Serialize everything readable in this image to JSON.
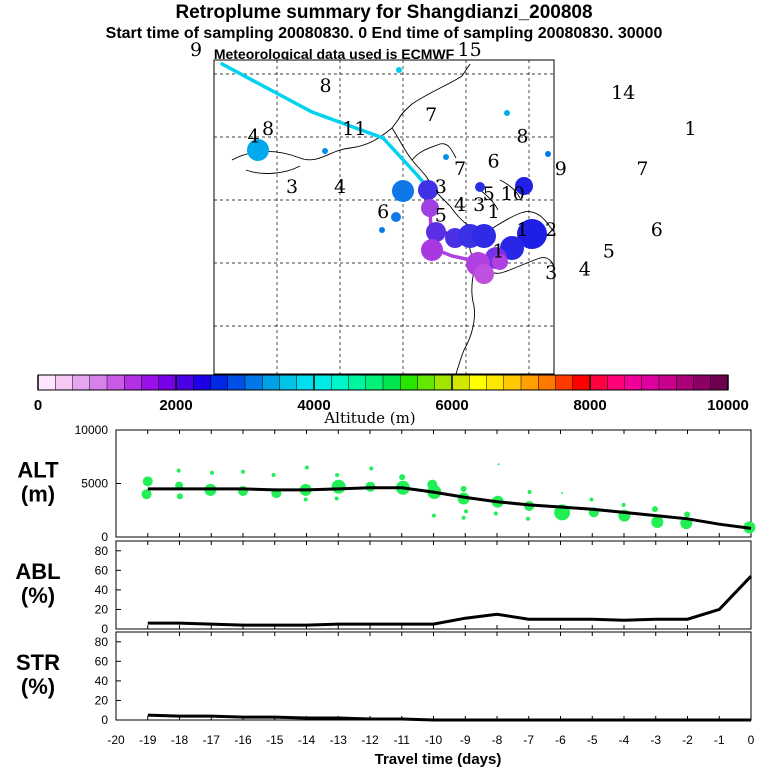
{
  "header": {
    "title": "Retroplume summary for Shangdianzi_200808",
    "subtitle": "Start time of sampling 20080830.    0     End time of sampling 20080830. 30000",
    "subtitle2": "Meteorological data used is ECMWF"
  },
  "chart_data": [
    {
      "type": "map",
      "name": "retroplume-map",
      "colorbar": {
        "label": "Altitude (m)",
        "ticks": [
          "0",
          "2000",
          "4000",
          "6000",
          "8000",
          "10000"
        ],
        "range": [
          0,
          10000
        ],
        "colors": [
          "#ffe6ff",
          "#f5c8f5",
          "#e6a5f0",
          "#d782eb",
          "#c85ae6",
          "#b430e6",
          "#9b10e6",
          "#7800e6",
          "#4b00e6",
          "#1e00e6",
          "#0028e6",
          "#0050e6",
          "#0078e6",
          "#00a0e6",
          "#00c3e6",
          "#00dcf0",
          "#00ebe6",
          "#00f5c8",
          "#00f5a0",
          "#00f078",
          "#00e650",
          "#28e600",
          "#64e600",
          "#a0e600",
          "#d2e600",
          "#ffff00",
          "#ffe600",
          "#ffc800",
          "#ffa000",
          "#ff7800",
          "#ff3c00",
          "#ff0000",
          "#ff0040",
          "#ff0078",
          "#f00096",
          "#dc00a0",
          "#c8008c",
          "#aa0078",
          "#8c0064",
          "#6e0050"
        ]
      },
      "labels": [
        {
          "text": "9",
          "lon": -3.0,
          "lat": 3.0
        },
        {
          "text": "15",
          "lon": 2.7,
          "lat": 3.0
        },
        {
          "text": "8",
          "lon": -0.3,
          "lat": 2.0
        },
        {
          "text": "14",
          "lon": 5.9,
          "lat": 1.8
        },
        {
          "text": "7",
          "lon": 1.9,
          "lat": 1.2
        },
        {
          "text": "8",
          "lon": -1.5,
          "lat": 0.8
        },
        {
          "text": "11",
          "lon": 0.3,
          "lat": 0.8
        },
        {
          "text": "8",
          "lon": 3.8,
          "lat": 0.6
        },
        {
          "text": "1",
          "lon": 7.3,
          "lat": 0.8
        },
        {
          "text": "4",
          "lon": -1.8,
          "lat": 0.6
        },
        {
          "text": "7",
          "lon": 2.5,
          "lat": -0.3
        },
        {
          "text": "6",
          "lon": 3.2,
          "lat": -0.1
        },
        {
          "text": "9",
          "lon": 4.6,
          "lat": -0.3
        },
        {
          "text": "7",
          "lon": 6.3,
          "lat": -0.3
        },
        {
          "text": "3",
          "lon": -1.0,
          "lat": -0.8
        },
        {
          "text": "4",
          "lon": 0.0,
          "lat": -0.8
        },
        {
          "text": "3",
          "lon": 2.1,
          "lat": -0.8
        },
        {
          "text": "5",
          "lon": 3.1,
          "lat": -1.0
        },
        {
          "text": "10",
          "lon": 3.6,
          "lat": -1.0
        },
        {
          "text": "4",
          "lon": 2.5,
          "lat": -1.3
        },
        {
          "text": "3",
          "lon": 2.9,
          "lat": -1.3
        },
        {
          "text": "6",
          "lon": 0.9,
          "lat": -1.5
        },
        {
          "text": "5",
          "lon": 2.1,
          "lat": -1.6
        },
        {
          "text": "1",
          "lon": 3.2,
          "lat": -1.5
        },
        {
          "text": "2",
          "lon": 4.4,
          "lat": -2.0
        },
        {
          "text": "6",
          "lon": 6.6,
          "lat": -2.0
        },
        {
          "text": "1",
          "lon": 3.3,
          "lat": -2.6
        },
        {
          "text": "1",
          "lon": 3.8,
          "lat": -2.0
        },
        {
          "text": "3",
          "lon": 4.4,
          "lat": -3.2
        },
        {
          "text": "4",
          "lon": 5.1,
          "lat": -3.1
        },
        {
          "text": "5",
          "lon": 5.6,
          "lat": -2.6
        }
      ]
    },
    {
      "type": "scatter+line",
      "name": "altitude-panel",
      "panel_label": "ALT\n(m)",
      "ylim": [
        0,
        10000
      ],
      "yticks": [
        "10000",
        "5000",
        "0"
      ],
      "line_x": [
        -19,
        -18,
        -17,
        -16,
        -15,
        -14,
        -13,
        -12,
        -11,
        -10,
        -9,
        -8,
        -7,
        -6,
        -5,
        -4,
        -3,
        -2,
        -1,
        0
      ],
      "line_y": [
        4500,
        4500,
        4500,
        4500,
        4400,
        4400,
        4500,
        4600,
        4600,
        4200,
        3700,
        3300,
        3000,
        2800,
        2600,
        2300,
        2000,
        1700,
        1200,
        800
      ],
      "points": [
        {
          "x": -19,
          "y": 5200,
          "s": 5
        },
        {
          "x": -19,
          "y": 4000,
          "s": 5
        },
        {
          "x": -18,
          "y": 6200,
          "s": 2
        },
        {
          "x": -18,
          "y": 4800,
          "s": 4
        },
        {
          "x": -18,
          "y": 3800,
          "s": 3
        },
        {
          "x": -17,
          "y": 6000,
          "s": 2
        },
        {
          "x": -17,
          "y": 4400,
          "s": 6
        },
        {
          "x": -16,
          "y": 6100,
          "s": 2
        },
        {
          "x": -16,
          "y": 4300,
          "s": 5
        },
        {
          "x": -15,
          "y": 5800,
          "s": 2
        },
        {
          "x": -15,
          "y": 4100,
          "s": 5
        },
        {
          "x": -14,
          "y": 6500,
          "s": 2
        },
        {
          "x": -14,
          "y": 4400,
          "s": 6
        },
        {
          "x": -14,
          "y": 3500,
          "s": 2
        },
        {
          "x": -13,
          "y": 5800,
          "s": 2
        },
        {
          "x": -13,
          "y": 4700,
          "s": 7
        },
        {
          "x": -13,
          "y": 3600,
          "s": 2
        },
        {
          "x": -12,
          "y": 6400,
          "s": 2
        },
        {
          "x": -12,
          "y": 4700,
          "s": 5
        },
        {
          "x": -11,
          "y": 5600,
          "s": 3
        },
        {
          "x": -11,
          "y": 4600,
          "s": 7
        },
        {
          "x": -10,
          "y": 4900,
          "s": 5
        },
        {
          "x": -10,
          "y": 4200,
          "s": 7
        },
        {
          "x": -10,
          "y": 2000,
          "s": 2
        },
        {
          "x": -9,
          "y": 4500,
          "s": 3
        },
        {
          "x": -9,
          "y": 3600,
          "s": 6
        },
        {
          "x": -9,
          "y": 2400,
          "s": 2
        },
        {
          "x": -9,
          "y": 1800,
          "s": 2
        },
        {
          "x": -8,
          "y": 6800,
          "s": 1
        },
        {
          "x": -8,
          "y": 3300,
          "s": 6
        },
        {
          "x": -8,
          "y": 2200,
          "s": 2
        },
        {
          "x": -7,
          "y": 4200,
          "s": 2
        },
        {
          "x": -7,
          "y": 2900,
          "s": 5
        },
        {
          "x": -7,
          "y": 1700,
          "s": 2
        },
        {
          "x": -6,
          "y": 4100,
          "s": 1
        },
        {
          "x": -6,
          "y": 2300,
          "s": 8
        },
        {
          "x": -5,
          "y": 3500,
          "s": 2
        },
        {
          "x": -5,
          "y": 2300,
          "s": 5
        },
        {
          "x": -4,
          "y": 3000,
          "s": 2
        },
        {
          "x": -4,
          "y": 2000,
          "s": 6
        },
        {
          "x": -3,
          "y": 2600,
          "s": 3
        },
        {
          "x": -3,
          "y": 1400,
          "s": 6
        },
        {
          "x": -2,
          "y": 2100,
          "s": 3
        },
        {
          "x": -2,
          "y": 1300,
          "s": 6
        },
        {
          "x": 0,
          "y": 900,
          "s": 6
        }
      ]
    },
    {
      "type": "line",
      "name": "abl-panel",
      "panel_label": "ABL\n(%)",
      "ylim": [
        0,
        90
      ],
      "yticks": [
        "80",
        "60",
        "40",
        "20",
        "0"
      ],
      "x": [
        -19,
        -18,
        -17,
        -16,
        -15,
        -14,
        -13,
        -12,
        -11,
        -10,
        -9,
        -8,
        -7,
        -6,
        -5,
        -4,
        -3,
        -2,
        -1,
        0
      ],
      "y": [
        6,
        6,
        5,
        4,
        4,
        4,
        5,
        5,
        5,
        5,
        11,
        15,
        10,
        10,
        10,
        9,
        10,
        10,
        20,
        54
      ]
    },
    {
      "type": "line",
      "name": "str-panel",
      "panel_label": "STR\n(%)",
      "ylim": [
        0,
        90
      ],
      "yticks": [
        "80",
        "60",
        "40",
        "20",
        "0"
      ],
      "x": [
        -19,
        -18,
        -17,
        -16,
        -15,
        -14,
        -13,
        -12,
        -11,
        -10,
        -9,
        -8,
        -7,
        -6,
        -5,
        -4,
        -3,
        -2,
        -1,
        0
      ],
      "y": [
        5,
        4,
        4,
        3,
        3,
        2,
        2,
        1,
        1,
        0,
        0,
        0,
        0,
        0,
        0,
        0,
        0,
        0,
        0,
        0
      ]
    }
  ],
  "xaxis": {
    "label": "Travel time (days)",
    "ticks": [
      "-20",
      "-19",
      "-18",
      "-17",
      "-16",
      "-15",
      "-14",
      "-13",
      "-12",
      "-11",
      "-10",
      "-9",
      "-8",
      "-7",
      "-6",
      "-5",
      "-4",
      "-3",
      "-2",
      "-1",
      "0"
    ]
  },
  "colors": {
    "scatter": "#22ee55",
    "ink": "#000000",
    "plume_cyan": "#00d2f0",
    "plume_purple": "#b040e0",
    "plume_blue": "#1e1ee6"
  }
}
